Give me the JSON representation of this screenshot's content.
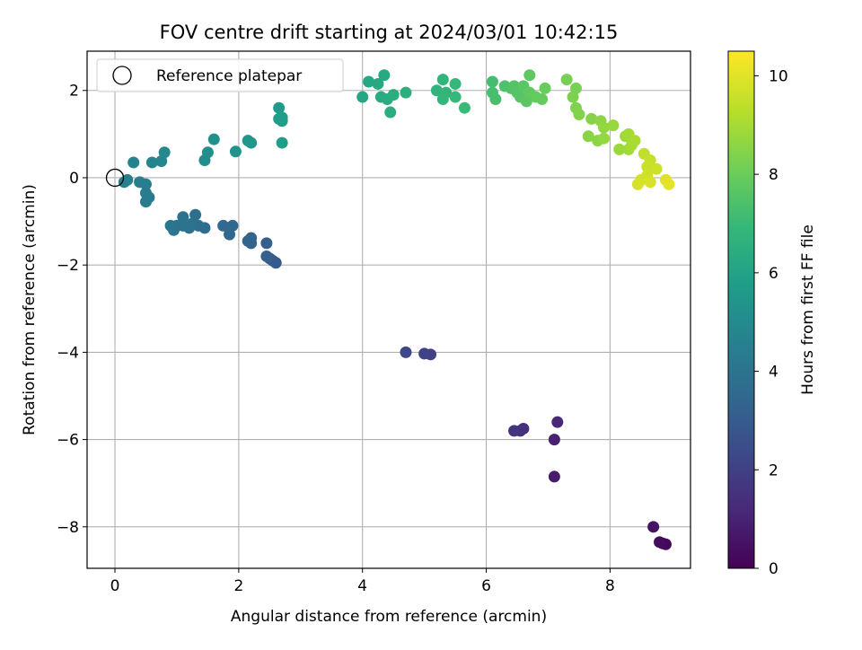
{
  "chart_data": {
    "type": "scatter",
    "title": "FOV centre drift starting at 2024/03/01 10:42:15",
    "xlabel": "Angular distance from reference (arcmin)",
    "ylabel": "Rotation from reference (arcmin)",
    "xlim": [
      -0.45,
      9.3
    ],
    "ylim": [
      -8.95,
      2.9
    ],
    "xticks": [
      0,
      2,
      4,
      6,
      8
    ],
    "yticks": [
      -8,
      -6,
      -4,
      -2,
      0,
      2
    ],
    "grid": true,
    "legend": {
      "placement": "top-left",
      "entries": [
        "Reference platepar"
      ]
    },
    "reference_point": {
      "x": 0,
      "y": 0
    },
    "colorbar": {
      "label": "Hours from first FF file",
      "range": [
        0,
        10.5
      ],
      "ticks": [
        0,
        2,
        4,
        6,
        8,
        10
      ],
      "colormap": "viridis"
    },
    "colormap_stops": [
      "#440154",
      "#482878",
      "#3e4989",
      "#31688e",
      "#26828e",
      "#1f9e89",
      "#35b779",
      "#6ece58",
      "#b5de2b",
      "#fde725"
    ],
    "series": [
      {
        "points": [
          {
            "x": 8.9,
            "y": -8.4,
            "c": 0.1
          },
          {
            "x": 8.85,
            "y": -8.38,
            "c": 0.2
          },
          {
            "x": 8.8,
            "y": -8.35,
            "c": 0.3
          },
          {
            "x": 8.7,
            "y": -8.0,
            "c": 0.5
          },
          {
            "x": 7.1,
            "y": -6.85,
            "c": 0.8
          },
          {
            "x": 7.1,
            "y": -6.0,
            "c": 1.0
          },
          {
            "x": 7.15,
            "y": -5.6,
            "c": 1.2
          },
          {
            "x": 6.6,
            "y": -5.75,
            "c": 1.4
          },
          {
            "x": 6.55,
            "y": -5.8,
            "c": 1.5
          },
          {
            "x": 6.45,
            "y": -5.8,
            "c": 1.6
          },
          {
            "x": 5.1,
            "y": -4.05,
            "c": 2.0
          },
          {
            "x": 5.0,
            "y": -4.03,
            "c": 2.1
          },
          {
            "x": 4.7,
            "y": -4.0,
            "c": 2.3
          },
          {
            "x": 2.6,
            "y": -1.95,
            "c": 3.0
          },
          {
            "x": 2.55,
            "y": -1.9,
            "c": 3.05
          },
          {
            "x": 2.5,
            "y": -1.85,
            "c": 3.1
          },
          {
            "x": 2.45,
            "y": -1.8,
            "c": 3.15
          },
          {
            "x": 2.45,
            "y": -1.5,
            "c": 3.2
          },
          {
            "x": 2.2,
            "y": -1.5,
            "c": 3.3
          },
          {
            "x": 2.15,
            "y": -1.45,
            "c": 3.35
          },
          {
            "x": 2.2,
            "y": -1.38,
            "c": 3.4
          },
          {
            "x": 1.9,
            "y": -1.1,
            "c": 3.5
          },
          {
            "x": 1.85,
            "y": -1.3,
            "c": 3.55
          },
          {
            "x": 1.75,
            "y": -1.1,
            "c": 3.6
          },
          {
            "x": 1.45,
            "y": -1.15,
            "c": 3.7
          },
          {
            "x": 1.35,
            "y": -1.1,
            "c": 3.75
          },
          {
            "x": 1.3,
            "y": -0.85,
            "c": 3.8
          },
          {
            "x": 1.25,
            "y": -1.05,
            "c": 3.85
          },
          {
            "x": 1.2,
            "y": -1.15,
            "c": 3.9
          },
          {
            "x": 1.1,
            "y": -0.9,
            "c": 3.95
          },
          {
            "x": 1.1,
            "y": -1.1,
            "c": 4.0
          },
          {
            "x": 1.0,
            "y": -1.1,
            "c": 4.05
          },
          {
            "x": 0.95,
            "y": -1.2,
            "c": 4.1
          },
          {
            "x": 0.9,
            "y": -1.1,
            "c": 4.15
          },
          {
            "x": 0.55,
            "y": -0.45,
            "c": 4.3
          },
          {
            "x": 0.5,
            "y": -0.55,
            "c": 4.35
          },
          {
            "x": 0.5,
            "y": -0.35,
            "c": 4.4
          },
          {
            "x": 0.5,
            "y": -0.15,
            "c": 4.45
          },
          {
            "x": 0.4,
            "y": -0.1,
            "c": 4.5
          },
          {
            "x": 0.2,
            "y": -0.05,
            "c": 4.55
          },
          {
            "x": 0.15,
            "y": -0.1,
            "c": 4.6
          },
          {
            "x": 0.3,
            "y": 0.35,
            "c": 4.7
          },
          {
            "x": 0.6,
            "y": 0.35,
            "c": 4.8
          },
          {
            "x": 0.75,
            "y": 0.38,
            "c": 4.85
          },
          {
            "x": 0.8,
            "y": 0.58,
            "c": 4.9
          },
          {
            "x": 1.45,
            "y": 0.4,
            "c": 5.1
          },
          {
            "x": 1.5,
            "y": 0.58,
            "c": 5.2
          },
          {
            "x": 1.6,
            "y": 0.88,
            "c": 5.3
          },
          {
            "x": 1.95,
            "y": 0.6,
            "c": 5.4
          },
          {
            "x": 2.15,
            "y": 0.85,
            "c": 5.5
          },
          {
            "x": 2.2,
            "y": 0.8,
            "c": 5.55
          },
          {
            "x": 2.65,
            "y": 1.6,
            "c": 5.7
          },
          {
            "x": 2.65,
            "y": 1.35,
            "c": 5.75
          },
          {
            "x": 2.7,
            "y": 1.3,
            "c": 5.8
          },
          {
            "x": 2.7,
            "y": 1.38,
            "c": 5.82
          },
          {
            "x": 2.7,
            "y": 0.8,
            "c": 5.9
          },
          {
            "x": 4.0,
            "y": 1.85,
            "c": 6.2
          },
          {
            "x": 4.1,
            "y": 2.2,
            "c": 6.25
          },
          {
            "x": 4.25,
            "y": 2.15,
            "c": 6.3
          },
          {
            "x": 4.35,
            "y": 2.35,
            "c": 6.35
          },
          {
            "x": 4.3,
            "y": 1.85,
            "c": 6.4
          },
          {
            "x": 4.4,
            "y": 1.8,
            "c": 6.45
          },
          {
            "x": 4.45,
            "y": 1.5,
            "c": 6.5
          },
          {
            "x": 4.5,
            "y": 1.9,
            "c": 6.55
          },
          {
            "x": 4.7,
            "y": 1.95,
            "c": 6.6
          },
          {
            "x": 5.2,
            "y": 2.0,
            "c": 6.8
          },
          {
            "x": 5.3,
            "y": 2.25,
            "c": 6.85
          },
          {
            "x": 5.35,
            "y": 1.95,
            "c": 6.9
          },
          {
            "x": 5.3,
            "y": 1.8,
            "c": 6.95
          },
          {
            "x": 5.5,
            "y": 2.15,
            "c": 7.0
          },
          {
            "x": 5.5,
            "y": 1.85,
            "c": 7.05
          },
          {
            "x": 5.65,
            "y": 1.6,
            "c": 7.1
          },
          {
            "x": 6.1,
            "y": 2.2,
            "c": 7.3
          },
          {
            "x": 6.1,
            "y": 1.95,
            "c": 7.35
          },
          {
            "x": 6.15,
            "y": 1.8,
            "c": 7.4
          },
          {
            "x": 6.3,
            "y": 2.1,
            "c": 7.5
          },
          {
            "x": 6.4,
            "y": 2.05,
            "c": 7.55
          },
          {
            "x": 6.45,
            "y": 2.1,
            "c": 7.6
          },
          {
            "x": 6.5,
            "y": 1.95,
            "c": 7.65
          },
          {
            "x": 6.55,
            "y": 1.85,
            "c": 7.7
          },
          {
            "x": 6.6,
            "y": 2.1,
            "c": 7.75
          },
          {
            "x": 6.65,
            "y": 1.75,
            "c": 7.8
          },
          {
            "x": 6.7,
            "y": 2.35,
            "c": 7.85
          },
          {
            "x": 6.7,
            "y": 1.95,
            "c": 7.9
          },
          {
            "x": 6.8,
            "y": 1.85,
            "c": 7.95
          },
          {
            "x": 6.9,
            "y": 1.8,
            "c": 8.0
          },
          {
            "x": 6.95,
            "y": 2.05,
            "c": 8.05
          },
          {
            "x": 7.3,
            "y": 2.25,
            "c": 8.3
          },
          {
            "x": 7.45,
            "y": 2.05,
            "c": 8.35
          },
          {
            "x": 7.4,
            "y": 1.85,
            "c": 8.4
          },
          {
            "x": 7.45,
            "y": 1.6,
            "c": 8.45
          },
          {
            "x": 7.5,
            "y": 1.45,
            "c": 8.5
          },
          {
            "x": 7.7,
            "y": 1.35,
            "c": 8.55
          },
          {
            "x": 7.65,
            "y": 0.95,
            "c": 8.6
          },
          {
            "x": 7.8,
            "y": 0.85,
            "c": 8.65
          },
          {
            "x": 7.85,
            "y": 1.3,
            "c": 8.7
          },
          {
            "x": 7.9,
            "y": 1.15,
            "c": 8.75
          },
          {
            "x": 7.9,
            "y": 0.9,
            "c": 8.8
          },
          {
            "x": 8.05,
            "y": 1.2,
            "c": 8.85
          },
          {
            "x": 8.15,
            "y": 0.65,
            "c": 8.9
          },
          {
            "x": 8.25,
            "y": 0.95,
            "c": 8.95
          },
          {
            "x": 8.3,
            "y": 0.65,
            "c": 9.0
          },
          {
            "x": 8.3,
            "y": 1.0,
            "c": 9.05
          },
          {
            "x": 8.35,
            "y": 0.75,
            "c": 9.1
          },
          {
            "x": 8.4,
            "y": 0.85,
            "c": 9.15
          },
          {
            "x": 8.55,
            "y": 0.55,
            "c": 9.5
          },
          {
            "x": 8.65,
            "y": 0.4,
            "c": 9.6
          },
          {
            "x": 8.6,
            "y": 0.25,
            "c": 9.65
          },
          {
            "x": 8.75,
            "y": 0.2,
            "c": 9.7
          },
          {
            "x": 8.6,
            "y": 0.05,
            "c": 9.75
          },
          {
            "x": 8.5,
            "y": -0.05,
            "c": 9.8
          },
          {
            "x": 8.45,
            "y": -0.15,
            "c": 9.85
          },
          {
            "x": 8.65,
            "y": -0.1,
            "c": 9.9
          },
          {
            "x": 8.9,
            "y": -0.05,
            "c": 10.0
          },
          {
            "x": 8.95,
            "y": -0.15,
            "c": 10.1
          }
        ]
      }
    ]
  }
}
